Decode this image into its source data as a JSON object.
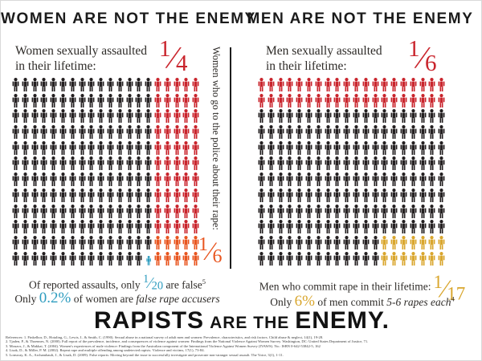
{
  "colors": {
    "red": "#c9242c",
    "orange": "#e8551f",
    "gold": "#d9a62d",
    "teal": "#2d9cbf",
    "ink": "#231f20",
    "icons": {
      "B": "#231f20",
      "R": "#c9242c",
      "O": "#e8551f",
      "Y": "#d9a62d",
      "T": "#2d9cbf"
    }
  },
  "left_panel": {
    "title": "WOMEN ARE NOT THE ENEMY",
    "subtitle_line1": "Women sexually assaulted",
    "subtitle_line2": "in their lifetime:",
    "assault_fraction": {
      "num": "1",
      "den": "4"
    },
    "vertical_label": "Women who go to the police about their rape:",
    "police_fraction": {
      "num": "1",
      "den": "6"
    },
    "grid_pattern": [
      "BBBBBBBBBBBBBBBRRRRR",
      "BBBBBBBBBBBBBBBRRRRR",
      "BBBBBBBBBBBBBBBRRRRR",
      "BBBBBBBBBBBBBBBRRRRR",
      "BBBBBBBBBBBBBBBRRRRR",
      "BBBBBBBBBBBBBBBRRRRR",
      "BBBBBBBBBBBBBBBRRRRR",
      "BBBBBBBBBBBBBBBRRRRR",
      "BBBBBBBBBBBBBBBRRRRR",
      "BBBBBBBBBBBBBBBRRRRR",
      "BBBBBBBBBBBBBBBOOOOO",
      "BBBBBBBBBBBBBBTOOOOO"
    ],
    "caption1": {
      "pre": "Of reported assaults, only ",
      "frac_num": "1",
      "frac_den": "20",
      "post": " are false",
      "ref": "5"
    },
    "caption2": {
      "pre": "Only ",
      "stat": "0.2%",
      "mid": " of women are ",
      "italic": "false rape accusers"
    }
  },
  "right_panel": {
    "title": "MEN ARE NOT THE ENEMY",
    "subtitle_line1": "Men sexually assaulted",
    "subtitle_line2": "in their lifetime:",
    "assault_fraction": {
      "num": "1",
      "den": "6"
    },
    "grid_pattern": [
      "RRRRRRRRRRRRRRRRRRRR",
      "RRRRRRRRRRRRRRRRRRRR",
      "BBBBBBBBBBBBBBBBBBBB",
      "BBBBBBBBBBBBBBBBBBBB",
      "BBBBBBBBBBBBBBBBBBBB",
      "BBBBBBBBBBBBBBBBBBBB",
      "BBBBBBBBBBBBBBBBBBBB",
      "BBBBBBBBBBBBBBBBBBBB",
      "BBBBBBBBBBBBBBBBBBBB",
      "BBBBBBBBBBBBBBBBBBBB",
      "BBBBBBBBBBBBBYYYYYYY",
      "BBBBBBBBBBBBBYYYYYYY"
    ],
    "caption1": {
      "text": "Men who commit rape in their lifetime:",
      "frac_num": "1",
      "frac_den": "17"
    },
    "caption2": {
      "pre": "Only ",
      "stat": "6%",
      "mid": " of men commit ",
      "italic": "5-6 rapes each",
      "ref": "4"
    }
  },
  "footer": {
    "headline": {
      "lead": "RAPISTS",
      "middle": "ARE THE",
      "tail": "ENEMY."
    },
    "references": [
      "References: 1. Finkelhor, D., Hotaling, G., Lewis, I., & Smith, C. (1990). Sexual abuse in a national survey of adult men and women: Prevalence, characteristics, and risk factors. Child abuse & neglect, 14(1), 19-28.",
      "2. Tjaden, P., & Thoennes, N. (2000). Full report of the prevalence, incidence, and consequences of violence against women: Findings from the National Violence Against Women Survey. Washington, DC: United States Department of Justice, 71.",
      "3. Mouzos, J., & Makkai, T. (2004). Women's experiences of male violence: Findings from the Australian component of the International Violence Against Women Survey (IVAWS). No.: ISBN 0-642-53842-5, 162",
      "4. Lisak, D., & Miller, P. M. (2002). Repeat rape and multiple offending among undetected rapists. Violence and victims, 17(1), 73-84.",
      "5. Lonsway, K. A., Archambault, J., & Lisak, D. (2009). False reports: Moving beyond the issue to successfully investigate and prosecute non-stranger sexual assault. The Voice, 3(1), 1-11."
    ]
  },
  "chart_data": [
    {
      "type": "pictograph",
      "panel": "women",
      "title": "Women are not the enemy",
      "rows": 12,
      "cols": 20,
      "total_icons": 240,
      "series": [
        {
          "name": "women baseline (black icons)",
          "count": 179,
          "color": "#231f20"
        },
        {
          "name": "sexually assaulted in lifetime (red icons, 1/4 of total)",
          "count": 50,
          "color": "#c9242c"
        },
        {
          "name": "assaulted who go to the police (orange icons, 1/6 of the 60 assaulted)",
          "count": 10,
          "color": "#e8551f"
        },
        {
          "name": "false reports (half-size teal icon, 1/20 of the 10 reported)",
          "count": 0.5,
          "color": "#2d9cbf"
        }
      ],
      "stats": [
        {
          "label": "Women sexually assaulted in their lifetime",
          "value": "1/4"
        },
        {
          "label": "Women who go to the police about their rape",
          "value": "1/6"
        },
        {
          "label": "Of reported assaults, false",
          "value": "1/20"
        },
        {
          "label": "Women who are false rape accusers",
          "value": "0.2%"
        }
      ]
    },
    {
      "type": "pictograph",
      "panel": "men",
      "title": "Men are not the enemy",
      "rows": 12,
      "cols": 20,
      "total_icons": 240,
      "series": [
        {
          "name": "men baseline (black icons)",
          "count": 186,
          "color": "#231f20"
        },
        {
          "name": "sexually assaulted in lifetime (red icons, 1/6 of total)",
          "count": 40,
          "color": "#c9242c"
        },
        {
          "name": "men who commit rape in their lifetime (gold icons, 1/17 of total)",
          "count": 14,
          "color": "#d9a62d"
        }
      ],
      "stats": [
        {
          "label": "Men sexually assaulted in their lifetime",
          "value": "1/6"
        },
        {
          "label": "Men who commit rape in their lifetime",
          "value": "1/17"
        },
        {
          "label": "Men who commit 5-6 rapes each",
          "value": "6%"
        }
      ]
    }
  ]
}
